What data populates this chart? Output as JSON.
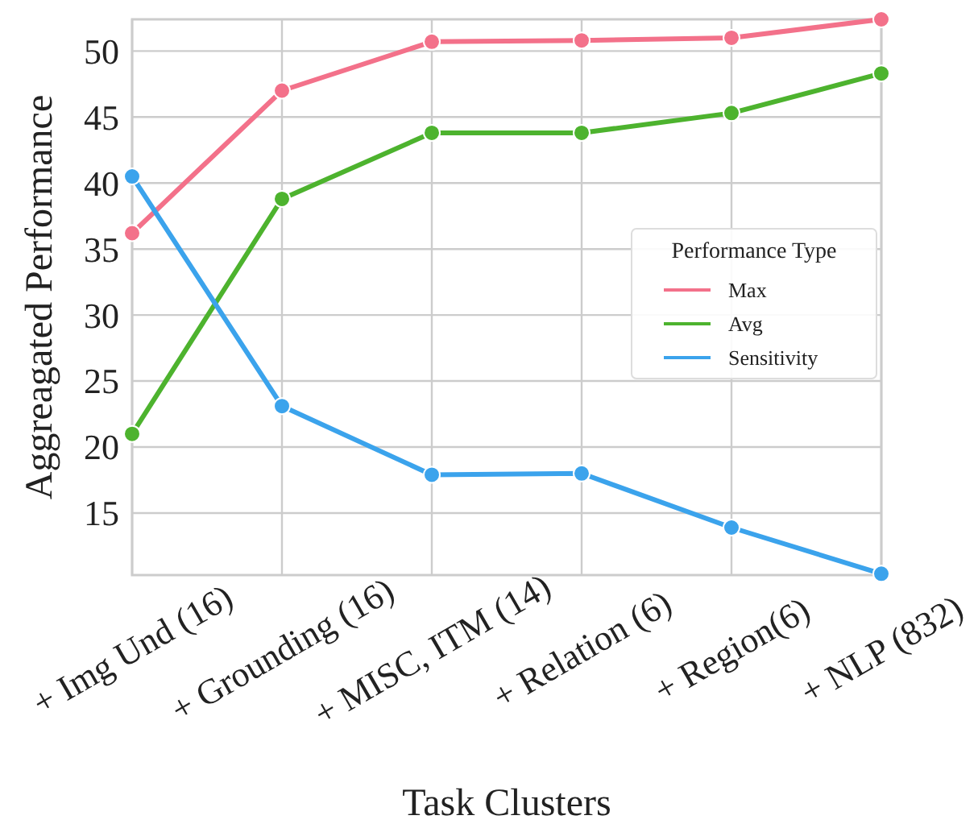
{
  "chart_data": {
    "type": "line",
    "xlabel": "Task Clusters",
    "ylabel": "Aggreagated Performance",
    "legend_title": "Performance Type",
    "categories": [
      "+ Img Und (16)",
      "+ Grounding (16)",
      "+ MISC, ITM (14)",
      "+ Relation (6)",
      "+ Region(6)",
      "+ NLP (832)"
    ],
    "series": [
      {
        "name": "Max",
        "color": "#f3718a",
        "values": [
          36.2,
          47.0,
          50.7,
          50.8,
          51.0,
          52.4
        ]
      },
      {
        "name": "Avg",
        "color": "#4db32e",
        "values": [
          21.0,
          38.8,
          43.8,
          43.8,
          45.3,
          48.3
        ]
      },
      {
        "name": "Sensitivity",
        "color": "#3ba3ec",
        "values": [
          40.5,
          23.1,
          17.9,
          18.0,
          13.9,
          10.4
        ]
      }
    ],
    "ylim": [
      10.3,
      52.4
    ],
    "yticks": [
      15,
      20,
      25,
      30,
      35,
      40,
      45,
      50
    ],
    "grid": true,
    "legend": "right",
    "marker": "circle",
    "line_style": "solid"
  }
}
